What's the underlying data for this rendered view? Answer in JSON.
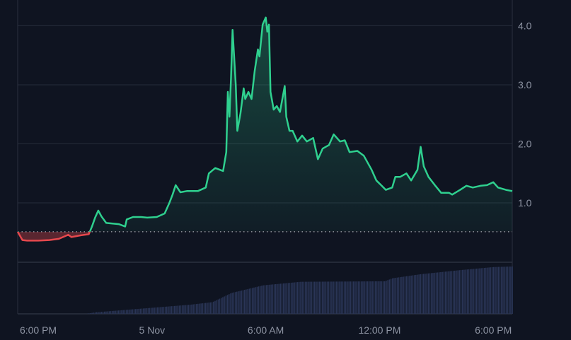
{
  "chart_data": {
    "type": "line",
    "title": "",
    "xlabel": "",
    "ylabel": "",
    "ylim": [
      0,
      4.4
    ],
    "y_ticks": [
      "1.0",
      "2.0",
      "3.0",
      "4.0"
    ],
    "y_tick_values": [
      1,
      2,
      3,
      4
    ],
    "x_ticks": [
      "6:00 PM",
      "5 Nov",
      "6:00 AM",
      "12:00 PM",
      "6:00 PM"
    ],
    "x_tick_times": [
      "2024-11-04T18:00",
      "2024-11-05T00:00",
      "2024-11-05T06:00",
      "2024-11-05T12:00",
      "2024-11-05T18:00"
    ],
    "x_range": [
      "2024-11-04T16:55",
      "2024-11-05T19:00"
    ],
    "grid": true,
    "axis_position": "right",
    "baseline": 0.51,
    "colors": {
      "up": "#2fd08f",
      "down": "#e5484d",
      "volume": "#2a3556",
      "grid": "#262c3a",
      "background": "#0f1421"
    },
    "series": [
      {
        "points": [
          [
            "2024-11-04T16:55",
            0.51
          ],
          [
            "2024-11-04T17:10",
            0.37
          ],
          [
            "2024-11-04T17:25",
            0.36
          ],
          [
            "2024-11-04T18:00",
            0.36
          ],
          [
            "2024-11-04T18:35",
            0.37
          ],
          [
            "2024-11-04T19:05",
            0.39
          ],
          [
            "2024-11-04T19:35",
            0.46
          ],
          [
            "2024-11-04T19:45",
            0.42
          ],
          [
            "2024-11-04T20:15",
            0.45
          ],
          [
            "2024-11-04T20:40",
            0.47
          ],
          [
            "2024-11-04T20:50",
            0.6
          ],
          [
            "2024-11-04T21:00",
            0.75
          ],
          [
            "2024-11-04T21:10",
            0.87
          ],
          [
            "2024-11-04T21:20",
            0.77
          ],
          [
            "2024-11-04T21:35",
            0.66
          ],
          [
            "2024-11-04T21:55",
            0.65
          ],
          [
            "2024-11-04T22:15",
            0.64
          ],
          [
            "2024-11-04T22:35",
            0.6
          ],
          [
            "2024-11-04T22:40",
            0.72
          ],
          [
            "2024-11-04T23:00",
            0.76
          ],
          [
            "2024-11-04T23:25",
            0.76
          ],
          [
            "2024-11-04T23:45",
            0.75
          ],
          [
            "2024-11-05T00:15",
            0.76
          ],
          [
            "2024-11-05T00:40",
            0.82
          ],
          [
            "2024-11-05T00:55",
            1.0
          ],
          [
            "2024-11-05T01:05",
            1.14
          ],
          [
            "2024-11-05T01:15",
            1.3
          ],
          [
            "2024-11-05T01:30",
            1.18
          ],
          [
            "2024-11-05T01:50",
            1.2
          ],
          [
            "2024-11-05T02:25",
            1.2
          ],
          [
            "2024-11-05T02:50",
            1.26
          ],
          [
            "2024-11-05T03:00",
            1.5
          ],
          [
            "2024-11-05T03:20",
            1.59
          ],
          [
            "2024-11-05T03:45",
            1.54
          ],
          [
            "2024-11-05T03:55",
            1.86
          ],
          [
            "2024-11-05T04:00",
            2.88
          ],
          [
            "2024-11-05T04:05",
            2.46
          ],
          [
            "2024-11-05T04:10",
            3.12
          ],
          [
            "2024-11-05T04:15",
            3.93
          ],
          [
            "2024-11-05T04:25",
            3.0
          ],
          [
            "2024-11-05T04:30",
            2.22
          ],
          [
            "2024-11-05T04:40",
            2.52
          ],
          [
            "2024-11-05T04:50",
            2.94
          ],
          [
            "2024-11-05T04:55",
            2.76
          ],
          [
            "2024-11-05T05:05",
            2.88
          ],
          [
            "2024-11-05T05:15",
            2.76
          ],
          [
            "2024-11-05T05:25",
            3.24
          ],
          [
            "2024-11-05T05:35",
            3.6
          ],
          [
            "2024-11-05T05:40",
            3.48
          ],
          [
            "2024-11-05T05:50",
            4.02
          ],
          [
            "2024-11-05T06:00",
            4.14
          ],
          [
            "2024-11-05T06:05",
            3.9
          ],
          [
            "2024-11-05T06:10",
            4.02
          ],
          [
            "2024-11-05T06:15",
            2.88
          ],
          [
            "2024-11-05T06:25",
            2.58
          ],
          [
            "2024-11-05T06:35",
            2.64
          ],
          [
            "2024-11-05T06:45",
            2.54
          ],
          [
            "2024-11-05T07:00",
            2.98
          ],
          [
            "2024-11-05T07:05",
            2.46
          ],
          [
            "2024-11-05T07:15",
            2.22
          ],
          [
            "2024-11-05T07:25",
            2.22
          ],
          [
            "2024-11-05T07:40",
            2.04
          ],
          [
            "2024-11-05T07:55",
            2.14
          ],
          [
            "2024-11-05T08:10",
            2.04
          ],
          [
            "2024-11-05T08:30",
            2.1
          ],
          [
            "2024-11-05T08:45",
            1.74
          ],
          [
            "2024-11-05T09:00",
            1.92
          ],
          [
            "2024-11-05T09:20",
            1.98
          ],
          [
            "2024-11-05T09:35",
            2.16
          ],
          [
            "2024-11-05T09:55",
            2.04
          ],
          [
            "2024-11-05T10:10",
            2.06
          ],
          [
            "2024-11-05T10:25",
            1.86
          ],
          [
            "2024-11-05T10:50",
            1.88
          ],
          [
            "2024-11-05T11:10",
            1.8
          ],
          [
            "2024-11-05T11:35",
            1.56
          ],
          [
            "2024-11-05T11:50",
            1.38
          ],
          [
            "2024-11-05T12:05",
            1.3
          ],
          [
            "2024-11-05T12:20",
            1.22
          ],
          [
            "2024-11-05T12:40",
            1.26
          ],
          [
            "2024-11-05T12:50",
            1.44
          ],
          [
            "2024-11-05T13:05",
            1.44
          ],
          [
            "2024-11-05T13:25",
            1.5
          ],
          [
            "2024-11-05T13:40",
            1.38
          ],
          [
            "2024-11-05T14:00",
            1.56
          ],
          [
            "2024-11-05T14:10",
            1.95
          ],
          [
            "2024-11-05T14:20",
            1.62
          ],
          [
            "2024-11-05T14:35",
            1.44
          ],
          [
            "2024-11-05T14:55",
            1.3
          ],
          [
            "2024-11-05T15:15",
            1.17
          ],
          [
            "2024-11-05T15:40",
            1.17
          ],
          [
            "2024-11-05T15:50",
            1.14
          ],
          [
            "2024-11-05T16:15",
            1.22
          ],
          [
            "2024-11-05T16:35",
            1.29
          ],
          [
            "2024-11-05T16:55",
            1.26
          ],
          [
            "2024-11-05T17:20",
            1.29
          ],
          [
            "2024-11-05T17:40",
            1.3
          ],
          [
            "2024-11-05T18:00",
            1.35
          ],
          [
            "2024-11-05T18:15",
            1.26
          ],
          [
            "2024-11-05T18:40",
            1.22
          ],
          [
            "2024-11-05T19:00",
            1.2
          ]
        ]
      }
    ],
    "volume_relative": [
      [
        "2024-11-04T16:55",
        0
      ],
      [
        "2024-11-04T20:30",
        0
      ],
      [
        "2024-11-04T21:00",
        3
      ],
      [
        "2024-11-05T00:00",
        12
      ],
      [
        "2024-11-05T02:00",
        18
      ],
      [
        "2024-11-05T03:10",
        23
      ],
      [
        "2024-11-05T04:10",
        41
      ],
      [
        "2024-11-05T05:50",
        56
      ],
      [
        "2024-11-05T07:50",
        63
      ],
      [
        "2024-11-05T12:15",
        64
      ],
      [
        "2024-11-05T12:40",
        70
      ],
      [
        "2024-11-05T14:10",
        78
      ],
      [
        "2024-11-05T16:15",
        86
      ],
      [
        "2024-11-05T18:00",
        92
      ],
      [
        "2024-11-05T19:00",
        93
      ]
    ]
  }
}
